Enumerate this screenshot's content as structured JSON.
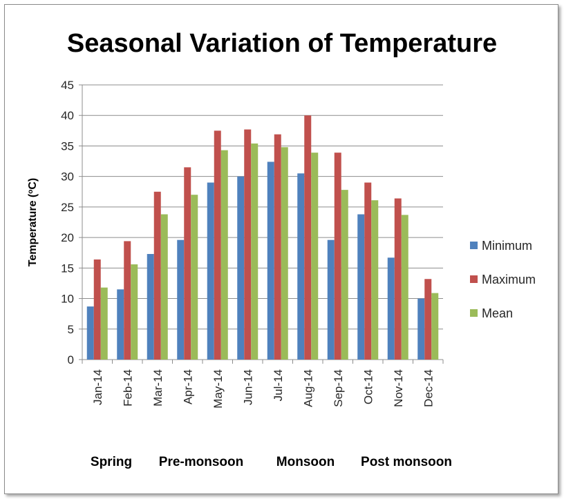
{
  "chart_data": {
    "type": "bar",
    "title": "Seasonal Variation of Temperature",
    "ylabel": "Temperature (",
    "ylabel_sup": "o",
    "ylabel_unit": "C)",
    "xlabel": "",
    "ylim": [
      0,
      45
    ],
    "yticks": [
      0,
      5,
      10,
      15,
      20,
      25,
      30,
      35,
      40,
      45
    ],
    "grid": true,
    "legend_position": "right",
    "categories": [
      "Jan-14",
      "Feb-14",
      "Mar-14",
      "Apr-14",
      "May-14",
      "Jun-14",
      "Jul-14",
      "Aug-14",
      "Sep-14",
      "Oct-14",
      "Nov-14",
      "Dec-14"
    ],
    "series": [
      {
        "name": "Minimum",
        "color": "#4f81bd",
        "values": [
          8.7,
          11.5,
          17.3,
          19.6,
          29.0,
          30.0,
          32.4,
          30.5,
          19.6,
          23.8,
          16.7,
          10.0
        ]
      },
      {
        "name": "Maximum",
        "color": "#c0504d",
        "values": [
          16.4,
          19.4,
          27.5,
          31.5,
          37.5,
          37.7,
          36.9,
          40.0,
          33.9,
          29.0,
          26.4,
          13.2
        ]
      },
      {
        "name": "Mean",
        "color": "#9bbb59",
        "values": [
          11.8,
          15.6,
          23.8,
          27.0,
          34.3,
          35.4,
          34.8,
          33.9,
          27.8,
          26.1,
          23.7,
          10.9
        ]
      }
    ],
    "season_labels": [
      "Spring",
      "Pre-monsoon",
      "Monsoon",
      "Post monsoon"
    ]
  }
}
